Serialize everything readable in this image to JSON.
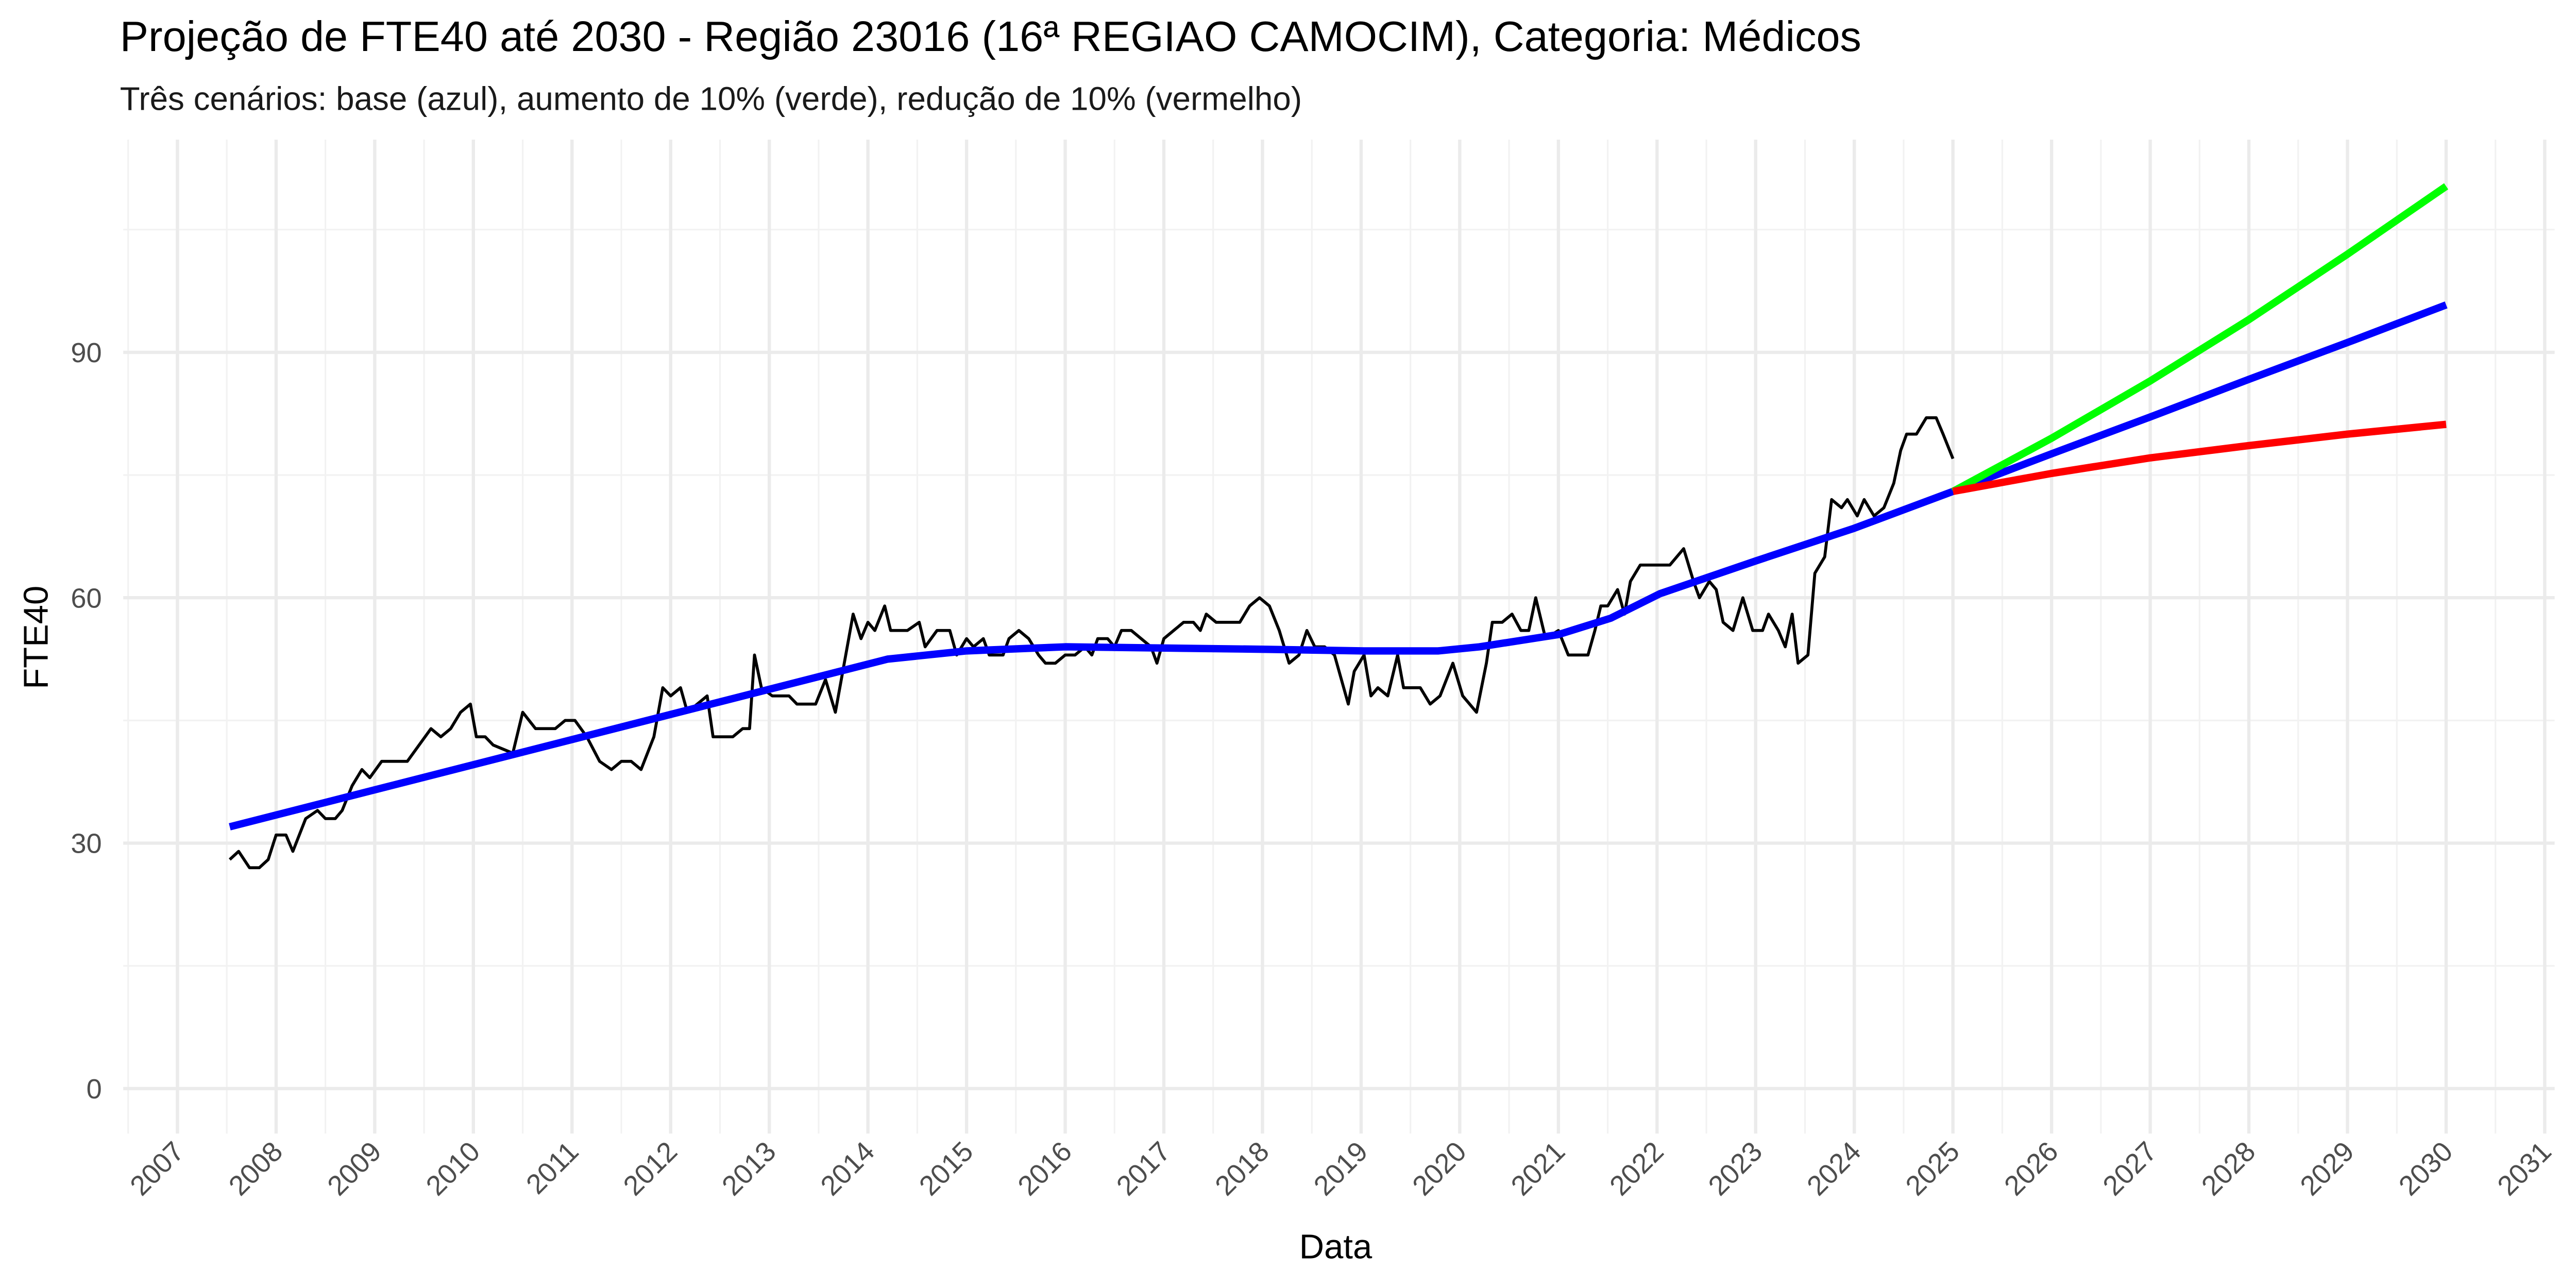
{
  "chart_data": {
    "type": "line",
    "title": "Projeção de FTE40 até 2030 - Região 23016 (16ª REGIAO CAMOCIM), Categoria: Médicos",
    "subtitle": "Três cenários: base (azul), aumento de 10% (verde), redução de 10% (vermelho)",
    "x_label": "Data",
    "y_label": "FTE40",
    "xlim": [
      2006.45,
      2031.1
    ],
    "ylim": [
      -5.5,
      116
    ],
    "xticks": [
      2007,
      2008,
      2009,
      2010,
      2011,
      2012,
      2013,
      2014,
      2015,
      2016,
      2017,
      2018,
      2019,
      2020,
      2021,
      2022,
      2023,
      2024,
      2025,
      2026,
      2027,
      2028,
      2029,
      2030,
      2031
    ],
    "yticks": [
      0,
      30,
      60,
      90
    ],
    "grid": true,
    "series": [
      {
        "color": "#000000",
        "width": 1.8,
        "x": [
          2007.53,
          2007.62,
          2007.73,
          2007.83,
          2007.92,
          2008.0,
          2008.1,
          2008.17,
          2008.3,
          2008.42,
          2008.5,
          2008.6,
          2008.67,
          2008.77,
          2008.87,
          2008.95,
          2009.07,
          2009.33,
          2009.45,
          2009.57,
          2009.67,
          2009.77,
          2009.87,
          2009.97,
          2010.03,
          2010.12,
          2010.2,
          2010.4,
          2010.5,
          2010.63,
          2010.83,
          2010.93,
          2011.03,
          2011.15,
          2011.28,
          2011.4,
          2011.5,
          2011.6,
          2011.7,
          2011.83,
          2011.92,
          2012.0,
          2012.1,
          2012.17,
          2012.27,
          2012.37,
          2012.43,
          2012.63,
          2012.73,
          2012.8,
          2012.85,
          2012.92,
          2013.03,
          2013.2,
          2013.28,
          2013.47,
          2013.57,
          2013.67,
          2013.73,
          2013.85,
          2013.93,
          2014.0,
          2014.07,
          2014.17,
          2014.23,
          2014.4,
          2014.52,
          2014.58,
          2014.7,
          2014.83,
          2014.9,
          2015.0,
          2015.07,
          2015.17,
          2015.23,
          2015.37,
          2015.43,
          2015.53,
          2015.63,
          2015.73,
          2015.8,
          2015.9,
          2016.0,
          2016.1,
          2016.2,
          2016.27,
          2016.33,
          2016.43,
          2016.5,
          2016.57,
          2016.67,
          2016.77,
          2016.87,
          2016.93,
          2017.0,
          2017.1,
          2017.2,
          2017.3,
          2017.37,
          2017.43,
          2017.53,
          2017.77,
          2017.87,
          2017.97,
          2018.07,
          2018.17,
          2018.27,
          2018.37,
          2018.45,
          2018.53,
          2018.63,
          2018.73,
          2018.87,
          2018.93,
          2019.03,
          2019.1,
          2019.17,
          2019.27,
          2019.37,
          2019.43,
          2019.6,
          2019.7,
          2019.8,
          2019.93,
          2020.03,
          2020.17,
          2020.27,
          2020.33,
          2020.43,
          2020.53,
          2020.62,
          2020.7,
          2020.77,
          2020.87,
          2021.0,
          2021.1,
          2021.3,
          2021.37,
          2021.43,
          2021.5,
          2021.6,
          2021.67,
          2021.73,
          2021.83,
          2022.13,
          2022.27,
          2022.37,
          2022.43,
          2022.53,
          2022.6,
          2022.67,
          2022.77,
          2022.87,
          2022.97,
          2023.07,
          2023.13,
          2023.23,
          2023.3,
          2023.37,
          2023.43,
          2023.53,
          2023.6,
          2023.7,
          2023.77,
          2023.87,
          2023.93,
          2024.03,
          2024.1,
          2024.2,
          2024.3,
          2024.4,
          2024.47,
          2024.53,
          2024.63,
          2024.73,
          2024.83,
          2024.9,
          2025.0
        ],
        "values": [
          28,
          29,
          27,
          27,
          28,
          31,
          31,
          29,
          33,
          34,
          33,
          33,
          34,
          37,
          39,
          38,
          40,
          40,
          42,
          44,
          43,
          44,
          46,
          47,
          43,
          43,
          42,
          41,
          46,
          44,
          44,
          45,
          45,
          43,
          40,
          39,
          40,
          40,
          39,
          43,
          49,
          48,
          49,
          46,
          47,
          48,
          43,
          43,
          44,
          44,
          53,
          49,
          48,
          48,
          47,
          47,
          50,
          46,
          50,
          58,
          55,
          57,
          56,
          59,
          56,
          56,
          57,
          54,
          56,
          56,
          53,
          55,
          54,
          55,
          53,
          53,
          55,
          56,
          55,
          53,
          52,
          52,
          53,
          53,
          54,
          53,
          55,
          55,
          54,
          56,
          56,
          55,
          54,
          52,
          55,
          56,
          57,
          57,
          56,
          58,
          57,
          57,
          59,
          60,
          59,
          56,
          52,
          53,
          56,
          54,
          54,
          53,
          47,
          51,
          53,
          48,
          49,
          48,
          53,
          49,
          49,
          47,
          48,
          52,
          48,
          46,
          52,
          57,
          57,
          58,
          56,
          56,
          60,
          55,
          56,
          53,
          53,
          56,
          59,
          59,
          61,
          58,
          62,
          64,
          64,
          66,
          62,
          60,
          62,
          61,
          57,
          56,
          60,
          56,
          56,
          58,
          56,
          54,
          58,
          52,
          53,
          63,
          65,
          72,
          71,
          72,
          70,
          72,
          70,
          71,
          74,
          78,
          80,
          80,
          82,
          82,
          80,
          77
        ]
      },
      {
        "color": "#0000ff",
        "width": 4.5,
        "x": [
          2007.53,
          2014.2,
          2015.0,
          2016.0,
          2018.03,
          2019.03,
          2019.78,
          2020.2,
          2021.0,
          2021.53,
          2022.03,
          2023.0,
          2024.0,
          2025.0,
          2026.0,
          2027.0,
          2028.0,
          2029.0,
          2030.0
        ],
        "values": [
          32,
          52.5,
          53.5,
          54,
          53.7,
          53.5,
          53.5,
          54,
          55.5,
          57.5,
          60.5,
          64.5,
          68.5,
          73,
          77.6,
          82.1,
          86.7,
          91.2,
          95.8
        ]
      },
      {
        "color": "#00ff00",
        "width": 4.5,
        "x": [
          2025.0,
          2026.0,
          2027.0,
          2028.0,
          2029.0,
          2030.0
        ],
        "values": [
          73,
          79.5,
          86.5,
          94,
          102,
          110.3
        ]
      },
      {
        "color": "#ff0000",
        "width": 4.5,
        "x": [
          2025.0,
          2026.0,
          2027.0,
          2028.0,
          2029.0,
          2030.0
        ],
        "values": [
          73,
          75.2,
          77.1,
          78.6,
          80,
          81.2
        ]
      }
    ]
  }
}
